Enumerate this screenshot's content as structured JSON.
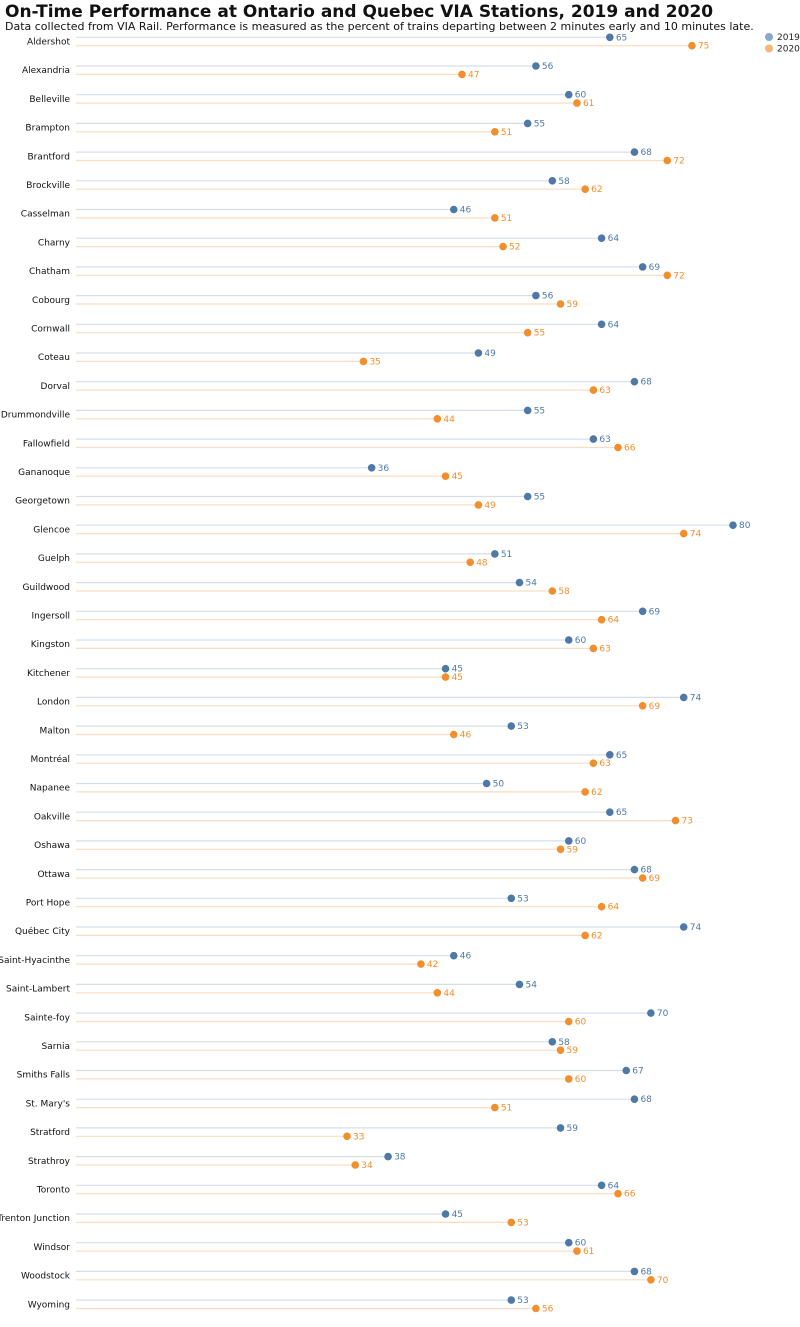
{
  "chart_data": {
    "type": "dot-range",
    "title": "On-Time Performance at Ontario and Quebec VIA Stations, 2019 and 2020",
    "subtitle": "Data collected from VIA Rail. Performance is measured as the percent of trains departing between 2 minutes early and 10 minutes late.",
    "legend": {
      "position": "top-right",
      "entries": [
        "2019",
        "2020"
      ]
    },
    "colors": {
      "2019": "#4e79a7",
      "2020": "#f28e2b",
      "line2019": "#d5dfec",
      "line2020": "#fbdcc0",
      "legend2019": "#88a9cc",
      "legend2020": "#f7b779"
    },
    "xlim": [
      0,
      80
    ],
    "categories": [
      "Aldershot",
      "Alexandria",
      "Belleville",
      "Brampton",
      "Brantford",
      "Brockville",
      "Casselman",
      "Charny",
      "Chatham",
      "Cobourg",
      "Cornwall",
      "Coteau",
      "Dorval",
      "Drummondville",
      "Fallowfield",
      "Gananoque",
      "Georgetown",
      "Glencoe",
      "Guelph",
      "Guildwood",
      "Ingersoll",
      "Kingston",
      "Kitchener",
      "London",
      "Malton",
      "Montréal",
      "Napanee",
      "Oakville",
      "Oshawa",
      "Ottawa",
      "Port Hope",
      "Québec City",
      "Saint-Hyacinthe",
      "Saint-Lambert",
      "Sainte-foy",
      "Sarnia",
      "Smiths Falls",
      "St. Mary's",
      "Stratford",
      "Strathroy",
      "Toronto",
      "Trenton Junction",
      "Windsor",
      "Woodstock",
      "Wyoming"
    ],
    "series": [
      {
        "name": "2019",
        "values": [
          65,
          56,
          60,
          55,
          68,
          58,
          46,
          64,
          69,
          56,
          64,
          49,
          68,
          55,
          63,
          36,
          55,
          80,
          51,
          54,
          69,
          60,
          45,
          74,
          53,
          65,
          50,
          65,
          60,
          68,
          53,
          74,
          46,
          54,
          70,
          58,
          67,
          68,
          59,
          38,
          64,
          45,
          60,
          68,
          53
        ]
      },
      {
        "name": "2020",
        "values": [
          75,
          47,
          61,
          51,
          72,
          62,
          51,
          52,
          72,
          59,
          55,
          35,
          63,
          44,
          66,
          45,
          49,
          74,
          48,
          58,
          64,
          63,
          45,
          69,
          46,
          63,
          62,
          73,
          59,
          69,
          64,
          62,
          42,
          44,
          60,
          59,
          60,
          51,
          33,
          34,
          66,
          53,
          61,
          70,
          56
        ]
      }
    ]
  }
}
